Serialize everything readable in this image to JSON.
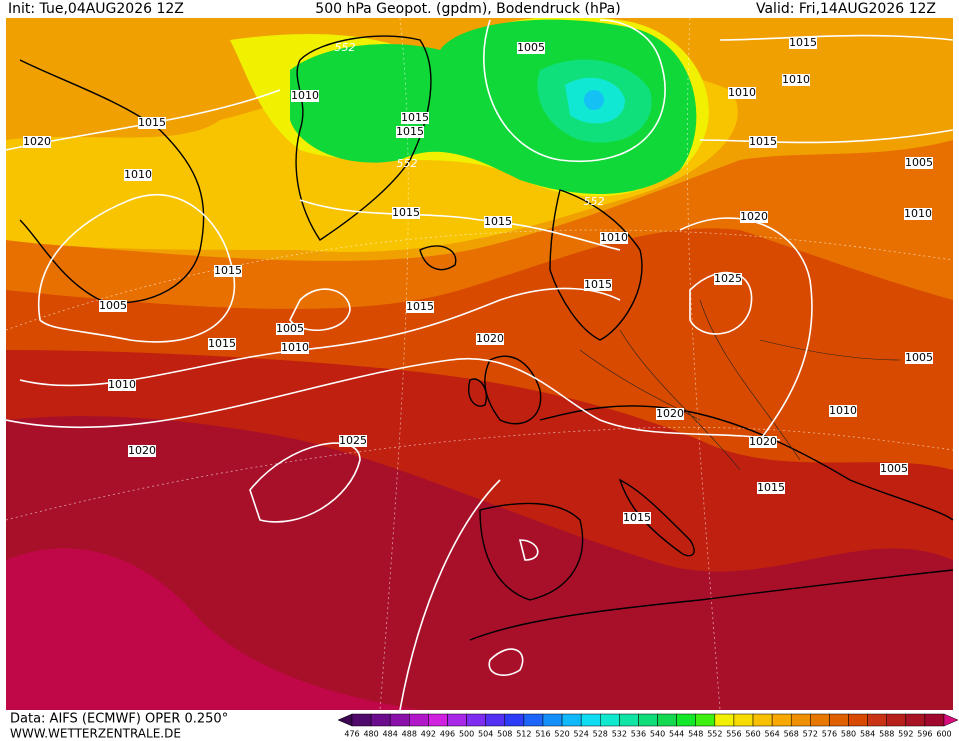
{
  "header": {
    "init": "Init: Tue,04AUG2026 12Z",
    "title": "500 hPa Geopot. (gpdm), Bodendruck (hPa)",
    "valid": "Valid: Fri,14AUG2026 12Z"
  },
  "footer": {
    "data": "Data: AIFS (ECMWF) OPER 0.250°",
    "site": "WWW.WETTERZENTRALE.DE"
  },
  "isobar_labels": [
    "1005",
    "1015",
    "1010",
    "1010",
    "1010",
    "1015",
    "1015",
    "1015",
    "1020",
    "1015",
    "1005",
    "1010",
    "1015",
    "1015",
    "1010",
    "1020",
    "1010",
    "1015",
    "1025",
    "1015",
    "1005",
    "1015",
    "1005",
    "1020",
    "1015",
    "1010",
    "1005",
    "1010",
    "1020",
    "1010",
    "1025",
    "1020",
    "1020",
    "1005",
    "1015",
    "1015"
  ],
  "geopotential_labels": [
    "552",
    "552",
    "552"
  ],
  "legend": {
    "levels": [
      476,
      480,
      484,
      488,
      492,
      496,
      500,
      504,
      508,
      512,
      516,
      520,
      524,
      528,
      532,
      536,
      540,
      544,
      548,
      552,
      556,
      560,
      564,
      568,
      572,
      576,
      580,
      584,
      588,
      592,
      596,
      600
    ],
    "colors": [
      "#3c0650",
      "#500a6e",
      "#6a0c8c",
      "#8a10aa",
      "#b018c8",
      "#d020e0",
      "#a828e8",
      "#7e2cf0",
      "#5430f4",
      "#2c3cf8",
      "#1c64fa",
      "#1490fc",
      "#10b8fc",
      "#10dcf4",
      "#10e8d0",
      "#10e4a4",
      "#10dc78",
      "#14d850",
      "#14e828",
      "#40f010",
      "#f0f000",
      "#f8dc00",
      "#f8c000",
      "#f8a800",
      "#f09000",
      "#e87800",
      "#e06000",
      "#d84a00",
      "#c83414",
      "#b8201c",
      "#a81424",
      "#a0082c",
      "#d80c7c"
    ]
  }
}
